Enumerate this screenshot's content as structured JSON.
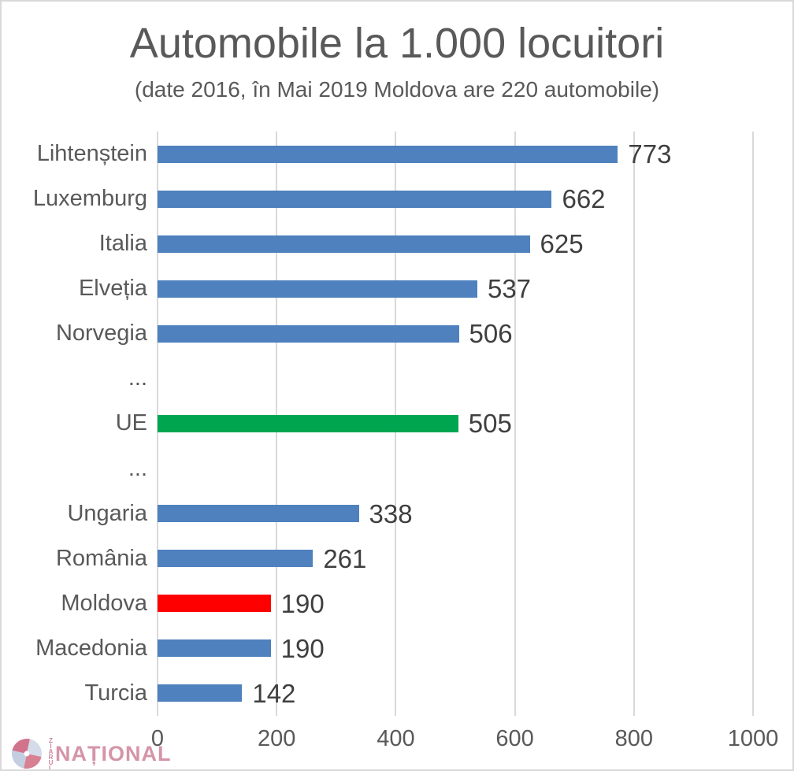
{
  "page": {
    "background": "#ffffff",
    "border_color": "#d9d9d9"
  },
  "chart_data": {
    "type": "bar",
    "orientation": "horizontal",
    "title": "Automobile la 1.000 locuitori",
    "subtitle": "(date 2016, în Mai 2019 Moldova are 220 automobile)",
    "categories": [
      "Lihtenștein",
      "Luxemburg",
      "Italia",
      "Elveția",
      "Norvegia",
      "...",
      "UE",
      "...",
      "Ungaria",
      "România",
      "Moldova",
      "Macedonia",
      "Turcia"
    ],
    "values": [
      773,
      662,
      625,
      537,
      506,
      null,
      505,
      null,
      338,
      261,
      190,
      190,
      142
    ],
    "bar_color_keys": [
      "blue",
      "blue",
      "blue",
      "blue",
      "blue",
      null,
      "green",
      null,
      "blue",
      "blue",
      "red",
      "blue",
      "blue"
    ],
    "colors": {
      "blue": "#4E81BD",
      "green": "#00A550",
      "red": "#FF0000"
    },
    "xlim": [
      0,
      1000
    ],
    "x_ticks": [
      "0",
      "200",
      "400",
      "600",
      "800",
      "1000"
    ],
    "grid": "vertical gridlines only",
    "gridline_color": "#d9d9d9",
    "title_color": "#595959",
    "category_label_color": "#595959",
    "value_label_color": "#3f3f3f",
    "legend": "none",
    "data_labels": "outside end of bars"
  },
  "watermark": {
    "vertical_text": "ZIARUL",
    "brand": "NAȚIONAL",
    "brand_color": "#cd8399",
    "logo_pink": "#c95c77",
    "logo_blue": "#bfcbdd"
  }
}
